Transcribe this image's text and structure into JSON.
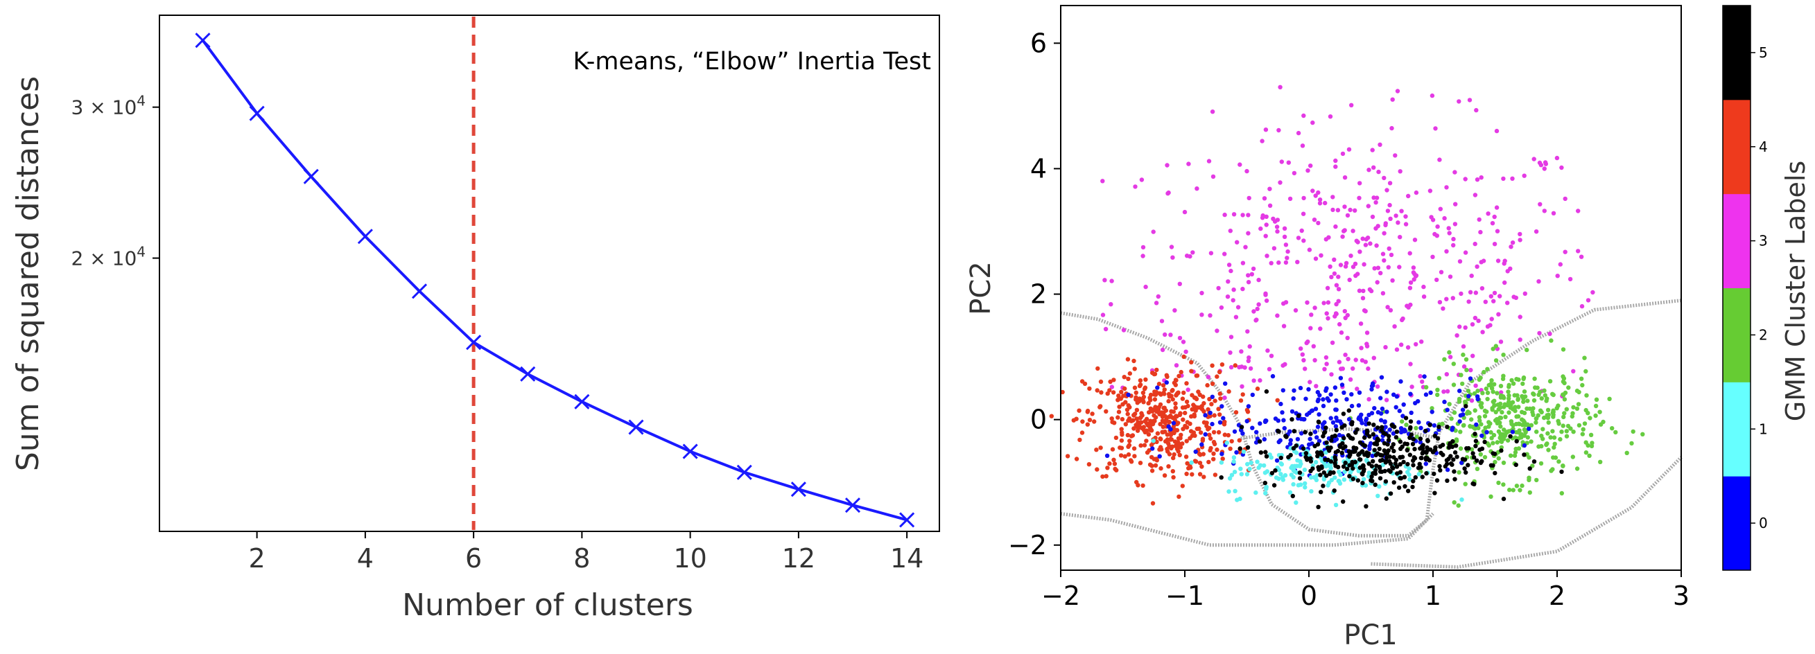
{
  "chart_data": [
    {
      "type": "line",
      "title": "K-means, “Elbow” Inertia Test",
      "xlabel": "Number of clusters",
      "ylabel": "Sum of squared distances",
      "y_scale": "log",
      "x": [
        1,
        2,
        3,
        4,
        5,
        6,
        7,
        8,
        9,
        10,
        11,
        12,
        13,
        14
      ],
      "y": [
        35900,
        29500,
        24900,
        21200,
        18300,
        15950,
        14650,
        13600,
        12700,
        11900,
        11250,
        10750,
        10300,
        9900
      ],
      "xlim": [
        0.2,
        14.6
      ],
      "ylim": [
        9600,
        38400
      ],
      "x_ticks": [
        "2",
        "4",
        "6",
        "8",
        "10",
        "12",
        "14"
      ],
      "y_ticks": [
        {
          "value": 30000,
          "base": "3 × 10",
          "exp": "4"
        },
        {
          "value": 20000,
          "base": "2 × 10",
          "exp": "4"
        }
      ],
      "line_color": "#1a1aff",
      "marker": "x",
      "vline": {
        "x": 6,
        "color": "#e0473a",
        "style": "dashed"
      }
    },
    {
      "type": "scatter",
      "xlabel": "PC1",
      "ylabel": "PC2",
      "xlim": [
        -2,
        3
      ],
      "ylim": [
        -2.4,
        6.6
      ],
      "x_ticks": [
        {
          "value": -2,
          "label": "−2"
        },
        {
          "value": -1,
          "label": "−1"
        },
        {
          "value": 0,
          "label": "0"
        },
        {
          "value": 1,
          "label": "1"
        },
        {
          "value": 2,
          "label": "2"
        },
        {
          "value": 3,
          "label": "3"
        }
      ],
      "y_ticks": [
        {
          "value": -2,
          "label": "−2"
        },
        {
          "value": 0,
          "label": "0"
        },
        {
          "value": 2,
          "label": "2"
        },
        {
          "value": 4,
          "label": "4"
        },
        {
          "value": 6,
          "label": "6"
        }
      ],
      "clusters": [
        {
          "label": "0",
          "color": "#1010f0",
          "center": [
            0.2,
            -0.05
          ],
          "spread": [
            0.55,
            0.35
          ],
          "count": 260
        },
        {
          "label": "1",
          "color": "#5ef0f0",
          "center": [
            0.1,
            -0.8
          ],
          "spread": [
            0.4,
            0.22
          ],
          "count": 180
        },
        {
          "label": "2",
          "color": "#66cc40",
          "center": [
            1.65,
            -0.05
          ],
          "spread": [
            0.35,
            0.45
          ],
          "count": 420
        },
        {
          "label": "3",
          "color": "#e43ae4",
          "center": [
            0.4,
            2.3
          ],
          "spread": [
            1.0,
            1.2
          ],
          "count": 520
        },
        {
          "label": "4",
          "color": "#e63a1e",
          "center": [
            -1.2,
            -0.05
          ],
          "spread": [
            0.3,
            0.45
          ],
          "count": 460
        },
        {
          "label": "5",
          "color": "#000000",
          "center": [
            0.55,
            -0.55
          ],
          "spread": [
            0.45,
            0.28
          ],
          "count": 360
        }
      ],
      "boundary_color": "#a8a8a8",
      "colorbar": {
        "label": "GMM Cluster Labels",
        "ticks": [
          "0",
          "1",
          "2",
          "3",
          "4",
          "5"
        ],
        "colors": [
          "#0000ff",
          "#66ffff",
          "#66cc33",
          "#ee33ee",
          "#ee3a1d",
          "#000000"
        ]
      }
    }
  ]
}
